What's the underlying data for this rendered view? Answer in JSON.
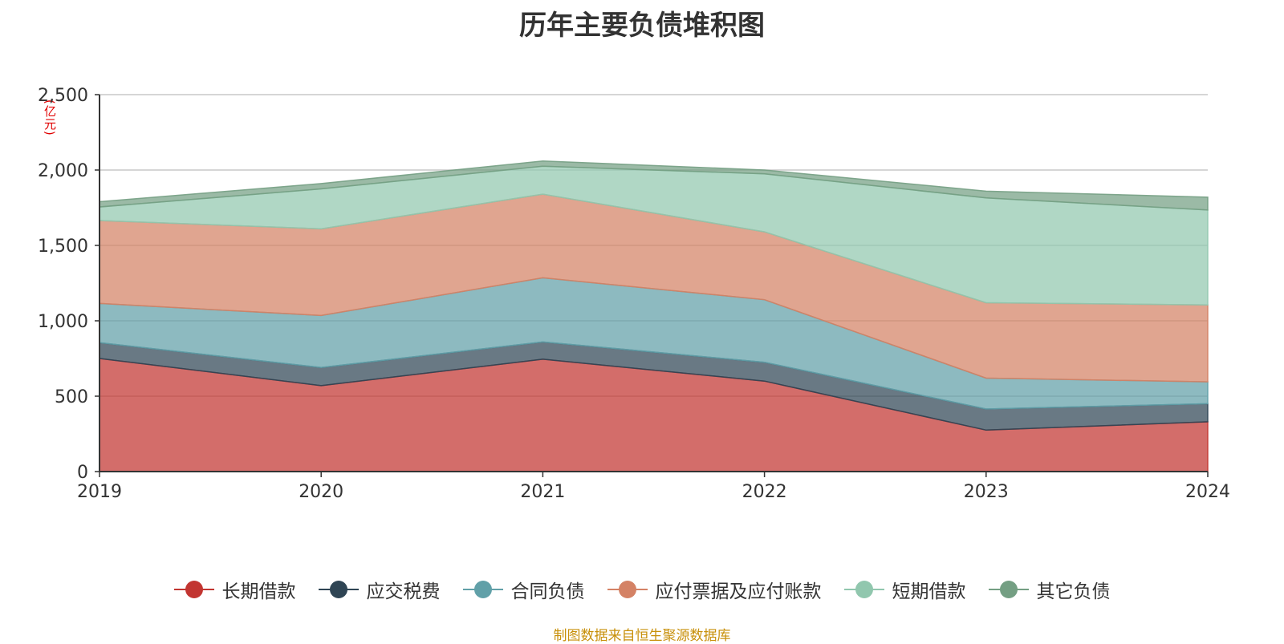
{
  "chart_data": {
    "type": "area",
    "stacked": true,
    "title": "历年主要负债堆积图",
    "unit_label": "(亿元)",
    "x": [
      "2019",
      "2020",
      "2021",
      "2022",
      "2023",
      "2024"
    ],
    "ylim": [
      0,
      2500
    ],
    "yticks": [
      "0",
      "500",
      "1,000",
      "1,500",
      "2,000",
      "2,500"
    ],
    "grid": true,
    "legend_position": "bottom",
    "series": [
      {
        "name": "长期借款",
        "color": "#c23531",
        "values": [
          750,
          570,
          745,
          600,
          275,
          330
        ]
      },
      {
        "name": "应交税费",
        "color": "#2f4554",
        "values": [
          105,
          120,
          115,
          125,
          140,
          120
        ]
      },
      {
        "name": "合同负债",
        "color": "#61a0a8",
        "values": [
          260,
          345,
          425,
          415,
          205,
          145
        ]
      },
      {
        "name": "应付票据及应付账款",
        "color": "#d48265",
        "values": [
          550,
          575,
          555,
          450,
          500,
          510
        ]
      },
      {
        "name": "短期借款",
        "color": "#91c7ae",
        "values": [
          90,
          265,
          185,
          385,
          695,
          630
        ]
      },
      {
        "name": "其它负债",
        "color": "#749f83",
        "values": [
          35,
          35,
          35,
          25,
          45,
          85
        ]
      }
    ],
    "source": "制图数据来自恒生聚源数据库"
  }
}
